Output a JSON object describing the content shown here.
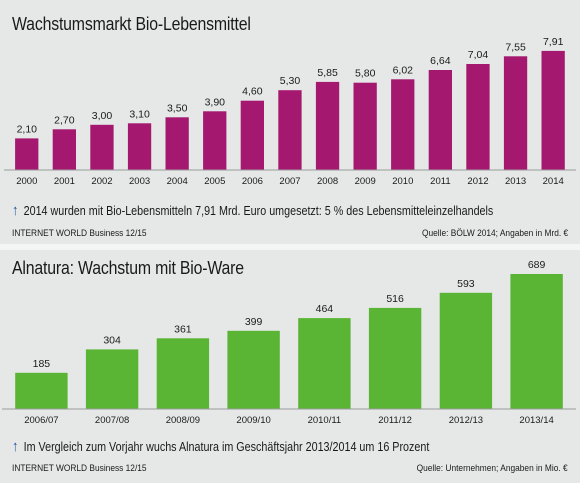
{
  "chart_data": [
    {
      "type": "bar",
      "title": "Wachstumsmarkt Bio-Lebensmittel",
      "categories": [
        "2000",
        "2001",
        "2002",
        "2003",
        "2004",
        "2005",
        "2006",
        "2007",
        "2008",
        "2009",
        "2010",
        "2011",
        "2012",
        "2013",
        "2014"
      ],
      "values": [
        2.1,
        2.7,
        3.0,
        3.1,
        3.5,
        3.9,
        4.6,
        5.3,
        5.85,
        5.8,
        6.02,
        6.64,
        7.04,
        7.55,
        7.91
      ],
      "value_labels": [
        "2,10",
        "2,70",
        "3,00",
        "3,10",
        "3,50",
        "3,90",
        "4,60",
        "5,30",
        "5,85",
        "5,80",
        "6,02",
        "6,64",
        "7,04",
        "7,55",
        "7,91"
      ],
      "color": "#a5186f",
      "ylim": [
        0,
        8.5
      ],
      "note": "2014 wurden mit Bio-Lebensmitteln 7,91 Mrd. Euro umgesetzt: 5 % des Lebensmitteleinzelhandels",
      "source_left": "INTERNET WORLD Business 12/15",
      "source_right": "Quelle: BÖLW 2014; Angaben in Mrd. €"
    },
    {
      "type": "bar",
      "title": "Alnatura: Wachstum mit Bio-Ware",
      "categories": [
        "2006/07",
        "2007/08",
        "2008/09",
        "2009/10",
        "2010/11",
        "2011/12",
        "2012/13",
        "2013/14"
      ],
      "values": [
        185,
        304,
        361,
        399,
        464,
        516,
        593,
        689
      ],
      "value_labels": [
        "185",
        "304",
        "361",
        "399",
        "464",
        "516",
        "593",
        "689"
      ],
      "color": "#5ab535",
      "ylim": [
        0,
        740
      ],
      "note": "Im Vergleich zum Vorjahr wuchs Alnatura im Geschäftsjahr 2013/2014 um 16 Prozent",
      "source_left": "INTERNET WORLD Business 12/15",
      "source_right": "Quelle: Unternehmen; Angaben in Mio. €"
    }
  ],
  "icons": {
    "note_arrow": "arrow-up-icon"
  },
  "accent_color": "#1e4f9c"
}
